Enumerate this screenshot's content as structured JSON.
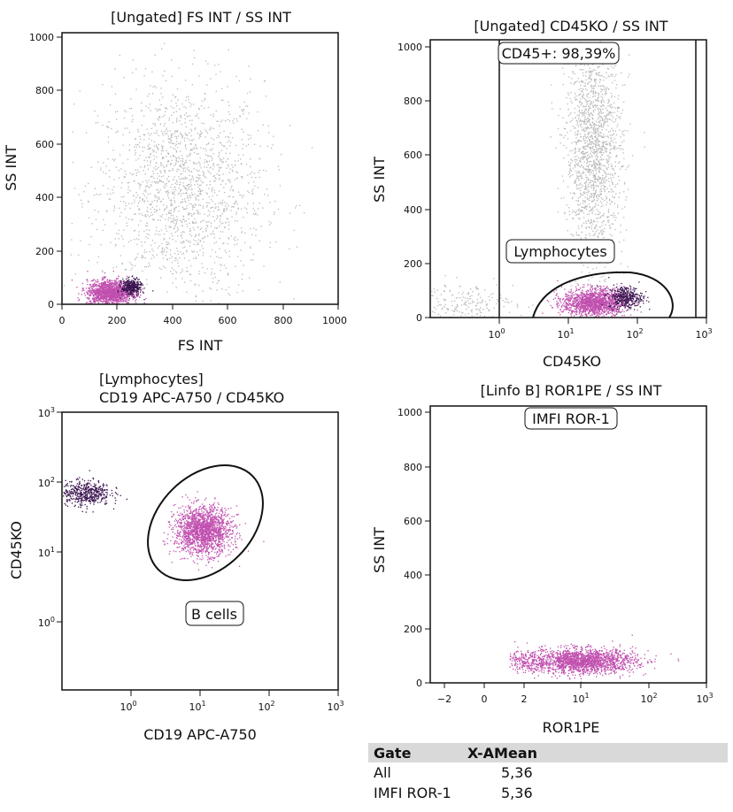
{
  "chart_data": [
    {
      "type": "scatter",
      "title": "[Ungated] FS INT / SS INT",
      "xlabel": "FS INT",
      "ylabel": "SS INT",
      "xscale": "linear",
      "yscale": "linear",
      "xlim": [
        0,
        1000
      ],
      "ylim": [
        0,
        1000
      ],
      "xticks": [
        "0",
        "200",
        "400",
        "600",
        "800",
        "1000"
      ],
      "yticks": [
        "0",
        "200",
        "400",
        "600",
        "800",
        "1000"
      ],
      "populations": [
        {
          "color": "#b8b8b8",
          "center": [
            430,
            420
          ],
          "spread": [
            150,
            200
          ],
          "n": 1800
        },
        {
          "color": "#c04fae",
          "center": [
            170,
            45
          ],
          "spread": [
            40,
            22
          ],
          "n": 1400
        },
        {
          "color": "#3b1450",
          "center": [
            250,
            65
          ],
          "spread": [
            18,
            15
          ],
          "n": 350
        }
      ],
      "gates": [],
      "grid": false
    },
    {
      "type": "scatter",
      "title": "[Ungated] CD45KO / SS INT",
      "xlabel": "CD45KO",
      "ylabel": "SS INT",
      "xscale": "log",
      "yscale": "linear",
      "xlim": [
        0.12,
        1000
      ],
      "ylim": [
        0,
        1000
      ],
      "xticks": [
        "10^0",
        "10^1",
        "10^2",
        "10^3"
      ],
      "yticks": [
        "0",
        "200",
        "400",
        "600",
        "800",
        "1000"
      ],
      "populations": [
        {
          "color": "#b8b8b8",
          "center": [
            25,
            600
          ],
          "spread": [
            0.2,
            200
          ],
          "n": 1700
        },
        {
          "color": "#b8b8b8",
          "center": [
            0.3,
            50
          ],
          "spread": [
            0.4,
            40
          ],
          "n": 250
        },
        {
          "color": "#c04fae",
          "center": [
            25,
            55
          ],
          "spread": [
            0.22,
            25
          ],
          "n": 1500
        },
        {
          "color": "#3b1450",
          "center": [
            70,
            75
          ],
          "spread": [
            0.12,
            20
          ],
          "n": 350
        }
      ],
      "gates": [
        {
          "type": "interval",
          "label": "CD45+: 98,39%",
          "x_range": [
            1,
            630
          ]
        },
        {
          "type": "ellipse",
          "label": "Lymphocytes"
        }
      ],
      "grid": false
    },
    {
      "type": "scatter",
      "title": "[Lymphocytes]",
      "subtitle": "CD19 APC-A750 / CD45KO",
      "xlabel": "CD19 APC-A750",
      "ylabel": "CD45KO",
      "xscale": "log",
      "yscale": "log",
      "xlim": [
        0.12,
        1000
      ],
      "ylim": [
        0.1,
        1000
      ],
      "xticks": [
        "10^0",
        "10^1",
        "10^2",
        "10^3"
      ],
      "yticks": [
        "10^0",
        "10^1",
        "10^2",
        "10^3"
      ],
      "populations": [
        {
          "color": "#3b1450",
          "center": [
            0.25,
            70
          ],
          "spread": [
            0.18,
            0.09
          ],
          "n": 500
        },
        {
          "color": "#c04fae",
          "center": [
            12,
            20
          ],
          "spread": [
            0.2,
            0.17
          ],
          "n": 1800
        }
      ],
      "gates": [
        {
          "type": "ellipse",
          "label": "B cells"
        }
      ],
      "grid": false
    },
    {
      "type": "scatter",
      "title": "[Linfo B] ROR1PE / SS INT",
      "xlabel": "ROR1PE",
      "ylabel": "SS INT",
      "xscale": "biexponential",
      "yscale": "linear",
      "xlim": [
        -3,
        1000
      ],
      "ylim": [
        0,
        1000
      ],
      "xticks": [
        "−2",
        "0",
        "2",
        "10^1",
        "10^2",
        "10^3"
      ],
      "yticks": [
        "0",
        "200",
        "400",
        "600",
        "800",
        "1000"
      ],
      "populations": [
        {
          "color": "#c04fae",
          "center": [
            5,
            80
          ],
          "spread": [
            0.5,
            22
          ],
          "n": 2000
        }
      ],
      "gates": [
        {
          "type": "interval",
          "label": "IMFI ROR-1"
        }
      ],
      "grid": false
    }
  ],
  "stats": {
    "headers": [
      "Gate",
      "X-AMean"
    ],
    "rows": [
      {
        "gate": "All",
        "value": "5,36"
      },
      {
        "gate": "IMFI ROR-1",
        "value": "5,36"
      }
    ]
  }
}
